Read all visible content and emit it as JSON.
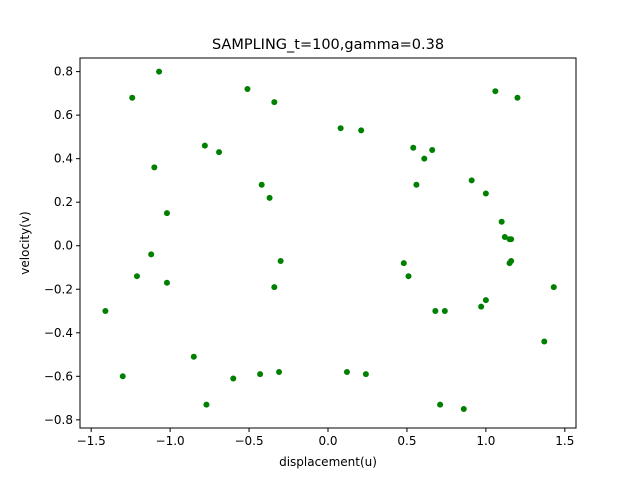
{
  "chart_data": {
    "type": "scatter",
    "title": "SAMPLING_t=100,gamma=0.38",
    "xlabel": "displacement(u)",
    "ylabel": "velocity(v)",
    "xlim": [
      -1.5,
      1.5
    ],
    "ylim": [
      -0.8,
      0.8
    ],
    "x_ticks": [
      -1.5,
      -1.0,
      -0.5,
      0.0,
      0.5,
      1.0,
      1.5
    ],
    "x_tick_labels": [
      "−1.5",
      "−1.0",
      "−0.5",
      "0.0",
      "0.5",
      "1.0",
      "1.5"
    ],
    "y_ticks": [
      -0.8,
      -0.6,
      -0.4,
      -0.2,
      0.0,
      0.2,
      0.4,
      0.6,
      0.8
    ],
    "y_tick_labels": [
      "−0.8",
      "−0.6",
      "−0.4",
      "−0.2",
      "0.0",
      "0.2",
      "0.4",
      "0.6",
      "0.8"
    ],
    "grid": false,
    "marker_color": "#008000",
    "series": [
      {
        "points": [
          [
            -1.07,
            0.8
          ],
          [
            -1.24,
            0.68
          ],
          [
            -0.51,
            0.72
          ],
          [
            -0.34,
            0.66
          ],
          [
            -1.1,
            0.36
          ],
          [
            -0.78,
            0.46
          ],
          [
            -0.69,
            0.43
          ],
          [
            -0.42,
            0.28
          ],
          [
            -0.37,
            0.22
          ],
          [
            -1.02,
            0.15
          ],
          [
            -1.12,
            -0.04
          ],
          [
            -1.21,
            -0.14
          ],
          [
            -1.02,
            -0.17
          ],
          [
            -0.3,
            -0.07
          ],
          [
            -0.34,
            -0.19
          ],
          [
            -1.41,
            -0.3
          ],
          [
            -1.3,
            -0.6
          ],
          [
            -0.85,
            -0.51
          ],
          [
            -0.77,
            -0.73
          ],
          [
            -0.6,
            -0.61
          ],
          [
            -0.43,
            -0.59
          ],
          [
            -0.31,
            -0.58
          ],
          [
            0.12,
            -0.58
          ],
          [
            0.24,
            -0.59
          ],
          [
            0.08,
            0.54
          ],
          [
            0.21,
            0.53
          ],
          [
            0.54,
            0.45
          ],
          [
            0.61,
            0.4
          ],
          [
            0.66,
            0.44
          ],
          [
            0.56,
            0.28
          ],
          [
            0.91,
            0.3
          ],
          [
            1.0,
            0.24
          ],
          [
            1.06,
            0.71
          ],
          [
            1.2,
            0.68
          ],
          [
            1.1,
            0.11
          ],
          [
            1.12,
            0.04
          ],
          [
            1.15,
            0.03
          ],
          [
            1.16,
            0.03
          ],
          [
            1.15,
            -0.08
          ],
          [
            1.16,
            -0.07
          ],
          [
            0.48,
            -0.08
          ],
          [
            0.51,
            -0.14
          ],
          [
            0.68,
            -0.3
          ],
          [
            0.74,
            -0.3
          ],
          [
            0.97,
            -0.28
          ],
          [
            1.0,
            -0.25
          ],
          [
            1.43,
            -0.19
          ],
          [
            1.37,
            -0.44
          ],
          [
            0.71,
            -0.73
          ],
          [
            0.86,
            -0.75
          ]
        ]
      }
    ]
  }
}
